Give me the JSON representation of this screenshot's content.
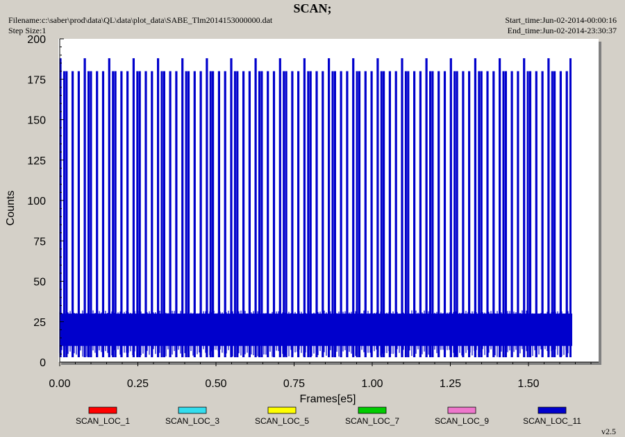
{
  "header": {
    "title": "SCAN;",
    "filename": "Filename:c:\\saber\\prod\\data\\QL\\data\\plot_data\\SABE_Tlm2014153000000.dat",
    "step_size": "Step Size:1",
    "start_time": "Start_time:Jun-02-2014-00:00:16",
    "end_time": "End_time:Jun-02-2014-23:30:37"
  },
  "version": "v2.5",
  "chart_data": {
    "type": "line",
    "title": "SCAN;",
    "xlabel": "Frames[e5]",
    "ylabel": "Counts",
    "xlim": [
      0,
      1.72
    ],
    "ylim": [
      0,
      200
    ],
    "x_ticks": [
      "0.00",
      "0.25",
      "0.50",
      "0.75",
      "1.00",
      "1.25",
      "1.50"
    ],
    "x_tick_values": [
      0,
      0.25,
      0.5,
      0.75,
      1.0,
      1.25,
      1.5
    ],
    "y_ticks": [
      "0",
      "25",
      "50",
      "75",
      "100",
      "125",
      "150",
      "175",
      "200"
    ],
    "y_tick_values": [
      0,
      25,
      50,
      75,
      100,
      125,
      150,
      175,
      200
    ],
    "grid": false,
    "legend_position": "bottom",
    "series": [
      {
        "name": "SCAN_LOC_1",
        "color": "#ff0000"
      },
      {
        "name": "SCAN_LOC_3",
        "color": "#33ddee"
      },
      {
        "name": "SCAN_LOC_5",
        "color": "#ffff00"
      },
      {
        "name": "SCAN_LOC_7",
        "color": "#00cc00"
      },
      {
        "name": "SCAN_LOC_9",
        "color": "#ee77cc"
      },
      {
        "name": "SCAN_LOC_11",
        "color": "#0000cc",
        "baseline_band": [
          10,
          30
        ],
        "spike_peak": 180,
        "spike_peak_alt": 188,
        "spike_min": 3,
        "x_end": 1.64
      }
    ]
  }
}
